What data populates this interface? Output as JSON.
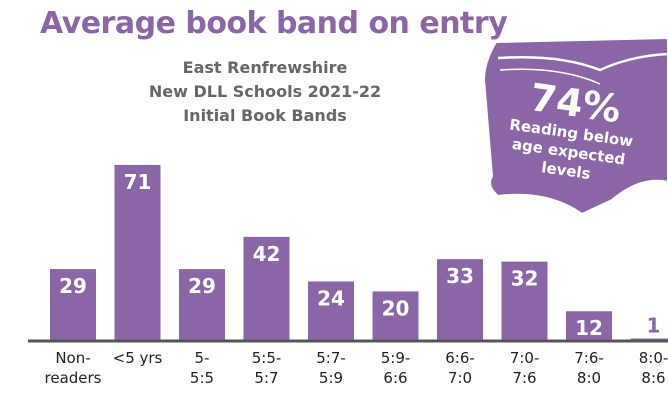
{
  "chart_data": {
    "type": "bar",
    "title": "Average book band on entry",
    "subtitle_lines": [
      "East Renfrewshire",
      "New DLL Schools 2021-22",
      "Initial Book Bands"
    ],
    "categories": [
      [
        "Non-",
        "readers"
      ],
      [
        "<5 yrs"
      ],
      [
        "5-",
        "5:5"
      ],
      [
        "5:5-",
        "5:7"
      ],
      [
        "5:7-",
        "5:9"
      ],
      [
        "5:9-",
        "6:6"
      ],
      [
        "6:6-",
        "7:0"
      ],
      [
        "7:0-",
        "7:6"
      ],
      [
        "7:6-",
        "8:0"
      ],
      [
        "8:0-",
        "8:6"
      ]
    ],
    "values": [
      29,
      71,
      29,
      42,
      24,
      20,
      33,
      32,
      12,
      1
    ],
    "ylim": [
      0,
      75
    ],
    "grid": false,
    "bar_color": "#8a66a6",
    "callout": {
      "percent": "74%",
      "lines": [
        "Reading below",
        "age expected",
        "levels"
      ],
      "color": "#8a66a6"
    }
  }
}
